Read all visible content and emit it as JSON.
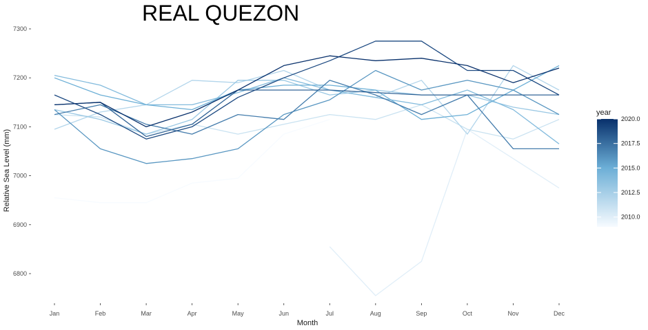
{
  "chart_data": {
    "type": "line",
    "title": "REAL QUEZON",
    "xlabel": "Month",
    "ylabel": "Relative Sea Level (mm)",
    "categories": [
      "Jan",
      "Feb",
      "Mar",
      "Apr",
      "May",
      "Jun",
      "Jul",
      "Aug",
      "Sep",
      "Oct",
      "Nov",
      "Dec"
    ],
    "ylim": [
      6740,
      7310
    ],
    "yticks": [
      6800,
      6900,
      7000,
      7100,
      7200,
      7300
    ],
    "grid": false,
    "legend": {
      "title": "year",
      "placement": "right",
      "min": 2009,
      "max": 2020,
      "ticks": [
        2010.0,
        2012.5,
        2015.0,
        2017.5,
        2020.0
      ],
      "color_low": "#f7fbff",
      "color_high": "#08306b"
    },
    "series": [
      {
        "year": 2009,
        "values": [
          6955,
          6945,
          6945,
          6985,
          6995,
          7085,
          7115,
          null,
          null,
          null,
          null,
          null
        ]
      },
      {
        "year": 2010,
        "values": [
          null,
          null,
          null,
          null,
          null,
          null,
          6855,
          6755,
          6825,
          7095,
          7035,
          6975
        ]
      },
      {
        "year": 2011,
        "values": [
          7125,
          7120,
          7085,
          7105,
          7085,
          7105,
          7125,
          7115,
          7145,
          7095,
          7075,
          7115
        ]
      },
      {
        "year": 2012,
        "values": [
          7095,
          7130,
          7145,
          7195,
          7190,
          7215,
          7175,
          7160,
          7195,
          7085,
          7225,
          7175
        ]
      },
      {
        "year": 2013,
        "values": [
          7135,
          7115,
          7085,
          7115,
          7195,
          7195,
          7165,
          7175,
          7165,
          7165,
          7140,
          7125
        ]
      },
      {
        "year": 2014,
        "values": [
          7205,
          7185,
          7145,
          7145,
          7170,
          7200,
          7175,
          7160,
          7145,
          7175,
          7135,
          7065
        ]
      },
      {
        "year": 2015,
        "values": [
          7200,
          7165,
          7145,
          7135,
          7175,
          7185,
          7185,
          7175,
          7115,
          7125,
          7175,
          7225
        ]
      },
      {
        "year": 2016,
        "values": [
          7135,
          7055,
          7025,
          7035,
          7055,
          7125,
          7155,
          7215,
          7175,
          7195,
          7175,
          7125
        ]
      },
      {
        "year": 2017,
        "values": [
          7125,
          7145,
          7105,
          7085,
          7125,
          7115,
          7195,
          7165,
          7125,
          7165,
          7055,
          7055
        ]
      },
      {
        "year": 2018,
        "values": [
          7145,
          7150,
          7080,
          7105,
          7175,
          7175,
          7175,
          7170,
          7165,
          7165,
          7165,
          7165
        ]
      },
      {
        "year": 2019,
        "values": [
          7165,
          7125,
          7075,
          7100,
          7160,
          7200,
          7235,
          7275,
          7275,
          7215,
          7215,
          7165
        ]
      },
      {
        "year": 2020,
        "values": [
          7145,
          7150,
          7100,
          7130,
          7175,
          7225,
          7245,
          7235,
          7240,
          7225,
          7190,
          7220
        ]
      }
    ]
  }
}
